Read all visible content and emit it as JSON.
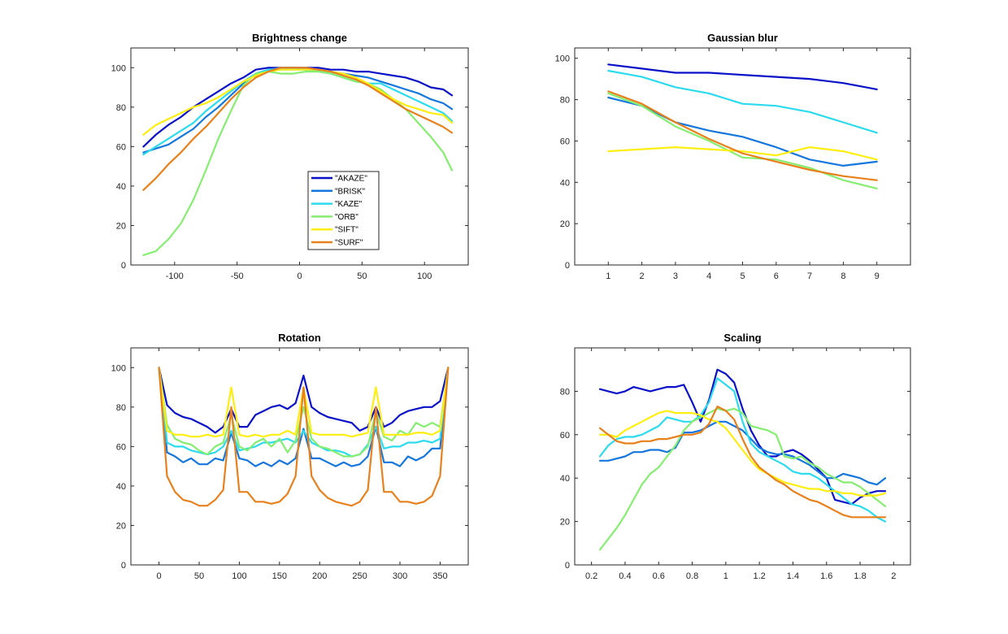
{
  "chart_data": [
    {
      "type": "line",
      "title": "Brightness change",
      "xlim": [
        -135,
        135
      ],
      "ylim": [
        0,
        110
      ],
      "xticks": [
        -100,
        -50,
        0,
        50,
        100
      ],
      "yticks": [
        0,
        20,
        40,
        60,
        80,
        100
      ],
      "legend": {
        "placement": "inside-lower-right"
      },
      "x": [
        -125,
        -115,
        -105,
        -95,
        -85,
        -75,
        -65,
        -55,
        -45,
        -35,
        -25,
        -15,
        -5,
        5,
        15,
        25,
        35,
        45,
        55,
        65,
        75,
        85,
        95,
        105,
        115,
        122
      ],
      "series": [
        {
          "name": "\"AKAZE\"",
          "color": "#0a10c8",
          "values": [
            60,
            66,
            71,
            75,
            80,
            84,
            88,
            92,
            95,
            99,
            100,
            100,
            100,
            100,
            100,
            99,
            99,
            98,
            98,
            97,
            96,
            95,
            93,
            90,
            89,
            86
          ]
        },
        {
          "name": "\"BRISK\"",
          "color": "#1577dd",
          "values": [
            57,
            59,
            61,
            65,
            69,
            75,
            80,
            86,
            92,
            97,
            99,
            100,
            100,
            99,
            99,
            98,
            97,
            96,
            95,
            93,
            91,
            89,
            87,
            84,
            82,
            79
          ]
        },
        {
          "name": "\"KAZE\"",
          "color": "#2cdbee",
          "values": [
            56,
            60,
            64,
            68,
            72,
            78,
            83,
            88,
            93,
            97,
            99,
            99,
            99,
            99,
            98,
            97,
            95,
            93,
            92,
            92,
            89,
            86,
            83,
            80,
            77,
            73
          ]
        },
        {
          "name": "\"ORB\"",
          "color": "#85ee70",
          "values": [
            5,
            7,
            13,
            21,
            33,
            48,
            64,
            78,
            91,
            97,
            98,
            97,
            97,
            98,
            98,
            97,
            95,
            93,
            92,
            89,
            84,
            79,
            72,
            65,
            57,
            48
          ]
        },
        {
          "name": "\"SIFT\"",
          "color": "#ffee10",
          "values": [
            66,
            71,
            74,
            77,
            80,
            82,
            85,
            89,
            93,
            96,
            98,
            99,
            99,
            99,
            99,
            98,
            97,
            95,
            92,
            88,
            84,
            81,
            79,
            77,
            76,
            72
          ]
        },
        {
          "name": "\"SURF\"",
          "color": "#e8801c",
          "values": [
            38,
            44,
            51,
            57,
            64,
            70,
            77,
            84,
            90,
            95,
            98,
            100,
            100,
            100,
            99,
            98,
            96,
            94,
            91,
            87,
            83,
            79,
            76,
            73,
            70,
            67
          ]
        }
      ]
    },
    {
      "type": "line",
      "title": "Gaussian blur",
      "xlim": [
        0,
        10
      ],
      "ylim": [
        0,
        105
      ],
      "xticks": [
        1,
        2,
        3,
        4,
        5,
        6,
        7,
        8,
        9
      ],
      "yticks": [
        0,
        20,
        40,
        60,
        80,
        100
      ],
      "x": [
        1,
        2,
        3,
        4,
        5,
        6,
        7,
        8,
        9
      ],
      "series": [
        {
          "name": "\"AKAZE\"",
          "color": "#0a10c8",
          "values": [
            97,
            95,
            93,
            93,
            92,
            91,
            90,
            88,
            85
          ]
        },
        {
          "name": "\"BRISK\"",
          "color": "#1577dd",
          "values": [
            81,
            77,
            69,
            65,
            62,
            57,
            51,
            48,
            50
          ]
        },
        {
          "name": "\"KAZE\"",
          "color": "#2cdbee",
          "values": [
            94,
            91,
            86,
            83,
            78,
            77,
            74,
            69,
            64
          ]
        },
        {
          "name": "\"ORB\"",
          "color": "#85ee70",
          "values": [
            83,
            77,
            67,
            60,
            52,
            51,
            47,
            41,
            37
          ]
        },
        {
          "name": "\"SIFT\"",
          "color": "#ffee10",
          "values": [
            55,
            56,
            57,
            56,
            55,
            53,
            57,
            55,
            51
          ]
        },
        {
          "name": "\"SURF\"",
          "color": "#e8801c",
          "values": [
            84,
            78,
            69,
            61,
            54,
            50,
            46,
            43,
            41
          ]
        }
      ]
    },
    {
      "type": "line",
      "title": "Rotation",
      "xlim": [
        -35,
        385
      ],
      "ylim": [
        0,
        110
      ],
      "xticks": [
        0,
        50,
        100,
        150,
        200,
        250,
        300,
        350
      ],
      "yticks": [
        0,
        20,
        40,
        60,
        80,
        100
      ],
      "x": [
        0,
        10,
        20,
        30,
        40,
        50,
        60,
        70,
        80,
        90,
        100,
        110,
        120,
        130,
        140,
        150,
        160,
        170,
        180,
        190,
        200,
        210,
        220,
        230,
        240,
        250,
        260,
        270,
        280,
        290,
        300,
        310,
        320,
        330,
        340,
        350,
        360
      ],
      "series": [
        {
          "name": "\"AKAZE\"",
          "color": "#0a10c8",
          "values": [
            100,
            81,
            77,
            75,
            74,
            72,
            70,
            67,
            70,
            79,
            70,
            70,
            76,
            78,
            80,
            81,
            79,
            82,
            96,
            80,
            77,
            75,
            74,
            73,
            72,
            68,
            70,
            80,
            70,
            72,
            76,
            78,
            79,
            80,
            80,
            83,
            100
          ]
        },
        {
          "name": "\"BRISK\"",
          "color": "#1577dd",
          "values": [
            100,
            57,
            55,
            52,
            54,
            51,
            51,
            54,
            53,
            67,
            54,
            53,
            50,
            52,
            50,
            53,
            51,
            54,
            69,
            54,
            54,
            52,
            50,
            52,
            50,
            51,
            55,
            70,
            52,
            52,
            50,
            55,
            53,
            55,
            59,
            59,
            100
          ]
        },
        {
          "name": "\"KAZE\"",
          "color": "#2cdbee",
          "values": [
            100,
            62,
            60,
            60,
            58,
            57,
            56,
            57,
            60,
            68,
            58,
            59,
            60,
            62,
            62,
            63,
            64,
            62,
            68,
            62,
            60,
            58,
            58,
            57,
            55,
            56,
            61,
            70,
            59,
            60,
            60,
            62,
            62,
            63,
            62,
            64,
            100
          ]
        },
        {
          "name": "\"ORB\"",
          "color": "#85ee70",
          "values": [
            100,
            71,
            64,
            62,
            61,
            58,
            56,
            60,
            62,
            76,
            60,
            58,
            62,
            64,
            60,
            64,
            57,
            63,
            80,
            64,
            60,
            59,
            57,
            55,
            55,
            56,
            60,
            78,
            65,
            63,
            68,
            66,
            72,
            70,
            72,
            70,
            100
          ]
        },
        {
          "name": "\"SIFT\"",
          "color": "#ffee10",
          "values": [
            100,
            68,
            66,
            66,
            65,
            65,
            66,
            65,
            66,
            90,
            66,
            65,
            66,
            65,
            66,
            66,
            68,
            66,
            90,
            67,
            66,
            66,
            66,
            66,
            65,
            66,
            67,
            90,
            66,
            66,
            66,
            66,
            67,
            67,
            66,
            68,
            100
          ]
        },
        {
          "name": "\"SURF\"",
          "color": "#e8801c",
          "values": [
            100,
            45,
            37,
            33,
            32,
            30,
            30,
            33,
            38,
            80,
            37,
            37,
            32,
            32,
            31,
            32,
            36,
            45,
            90,
            45,
            38,
            34,
            32,
            31,
            30,
            32,
            38,
            80,
            37,
            37,
            32,
            32,
            31,
            32,
            35,
            45,
            100
          ]
        }
      ]
    },
    {
      "type": "line",
      "title": "Scaling",
      "xlim": [
        0.1,
        2.1
      ],
      "ylim": [
        0,
        100
      ],
      "xticks": [
        0.2,
        0.4,
        0.6,
        0.8,
        1,
        1.2,
        1.4,
        1.6,
        1.8,
        2
      ],
      "yticks": [
        0,
        20,
        40,
        60,
        80
      ],
      "x": [
        0.25,
        0.3,
        0.35,
        0.4,
        0.45,
        0.5,
        0.55,
        0.6,
        0.65,
        0.7,
        0.75,
        0.8,
        0.85,
        0.9,
        0.95,
        1,
        1.05,
        1.1,
        1.15,
        1.2,
        1.25,
        1.3,
        1.35,
        1.4,
        1.45,
        1.5,
        1.55,
        1.6,
        1.65,
        1.7,
        1.75,
        1.8,
        1.85,
        1.9,
        1.95
      ],
      "series": [
        {
          "name": "\"AKAZE\"",
          "color": "#0a10c8",
          "values": [
            81,
            80,
            79,
            80,
            82,
            81,
            80,
            81,
            82,
            82,
            83,
            75,
            66,
            76,
            90,
            88,
            84,
            72,
            62,
            55,
            50,
            50,
            52,
            53,
            51,
            48,
            44,
            40,
            30,
            29,
            28,
            31,
            33,
            34,
            34
          ]
        },
        {
          "name": "\"BRISK\"",
          "color": "#1577dd",
          "values": [
            48,
            48,
            49,
            50,
            52,
            52,
            53,
            53,
            52,
            54,
            61,
            61,
            62,
            64,
            66,
            66,
            64,
            62,
            58,
            54,
            52,
            51,
            51,
            50,
            48,
            46,
            43,
            40,
            40,
            42,
            41,
            40,
            38,
            37,
            40
          ]
        },
        {
          "name": "\"KAZE\"",
          "color": "#2cdbee",
          "values": [
            50,
            55,
            58,
            59,
            59,
            60,
            62,
            64,
            68,
            67,
            66,
            66,
            69,
            75,
            86,
            83,
            80,
            66,
            56,
            52,
            50,
            48,
            46,
            43,
            42,
            42,
            40,
            37,
            34,
            31,
            28,
            27,
            25,
            22,
            20
          ]
        },
        {
          "name": "\"ORB\"",
          "color": "#85ee70",
          "values": [
            7,
            12,
            17,
            23,
            30,
            37,
            42,
            45,
            50,
            55,
            62,
            66,
            68,
            70,
            72,
            71,
            72,
            70,
            64,
            63,
            62,
            60,
            50,
            49,
            50,
            47,
            45,
            42,
            40,
            38,
            38,
            36,
            33,
            30,
            27
          ]
        },
        {
          "name": "\"SIFT\"",
          "color": "#ffee10",
          "values": [
            60,
            60,
            59,
            62,
            64,
            66,
            68,
            70,
            71,
            70,
            70,
            70,
            69,
            67,
            66,
            63,
            58,
            53,
            48,
            44,
            42,
            40,
            38,
            37,
            36,
            35,
            35,
            34,
            34,
            33,
            33,
            32,
            32,
            32,
            33
          ]
        },
        {
          "name": "\"SURF\"",
          "color": "#e8801c",
          "values": [
            63,
            60,
            57,
            56,
            56,
            57,
            57,
            58,
            58,
            59,
            60,
            60,
            61,
            65,
            73,
            71,
            67,
            58,
            50,
            45,
            42,
            39,
            37,
            34,
            32,
            30,
            29,
            27,
            25,
            23,
            22,
            22,
            22,
            22,
            22
          ]
        }
      ]
    }
  ]
}
